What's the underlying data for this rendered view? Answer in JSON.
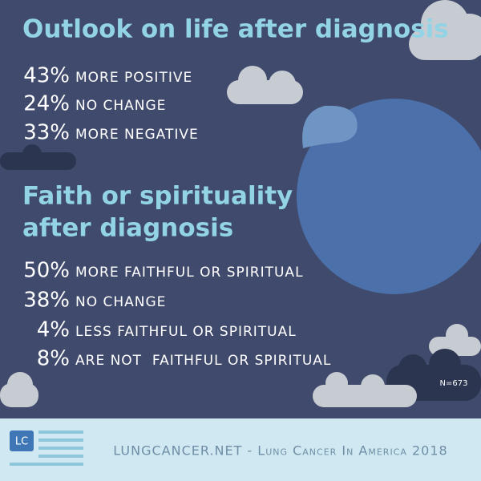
{
  "sections": [
    {
      "title_lines": [
        "Outlook on life after diagnosis"
      ],
      "items": [
        {
          "percent": "43%",
          "label": "MORE POSITIVE"
        },
        {
          "percent": "24%",
          "label": "NO CHANGE"
        },
        {
          "percent": "33%",
          "label": "MORE NEGATIVE"
        }
      ]
    },
    {
      "title_lines": [
        "Faith or spirituality",
        "after diagnosis"
      ],
      "items": [
        {
          "percent": "50%",
          "label": "MORE FAITHFUL OR SPIRITUAL"
        },
        {
          "percent": "38%",
          "label": "NO CHANGE"
        },
        {
          "percent": "4%",
          "label": "LESS FAITHFUL OR SPIRITUAL"
        },
        {
          "percent": "8%",
          "label": "ARE NOT  FAITHFUL OR SPIRITUAL"
        }
      ]
    }
  ],
  "sample_size": "N=673",
  "footer": {
    "logo": "LC",
    "text": "LUNGCANCER.NET - Lung Cancer In America 2018"
  }
}
